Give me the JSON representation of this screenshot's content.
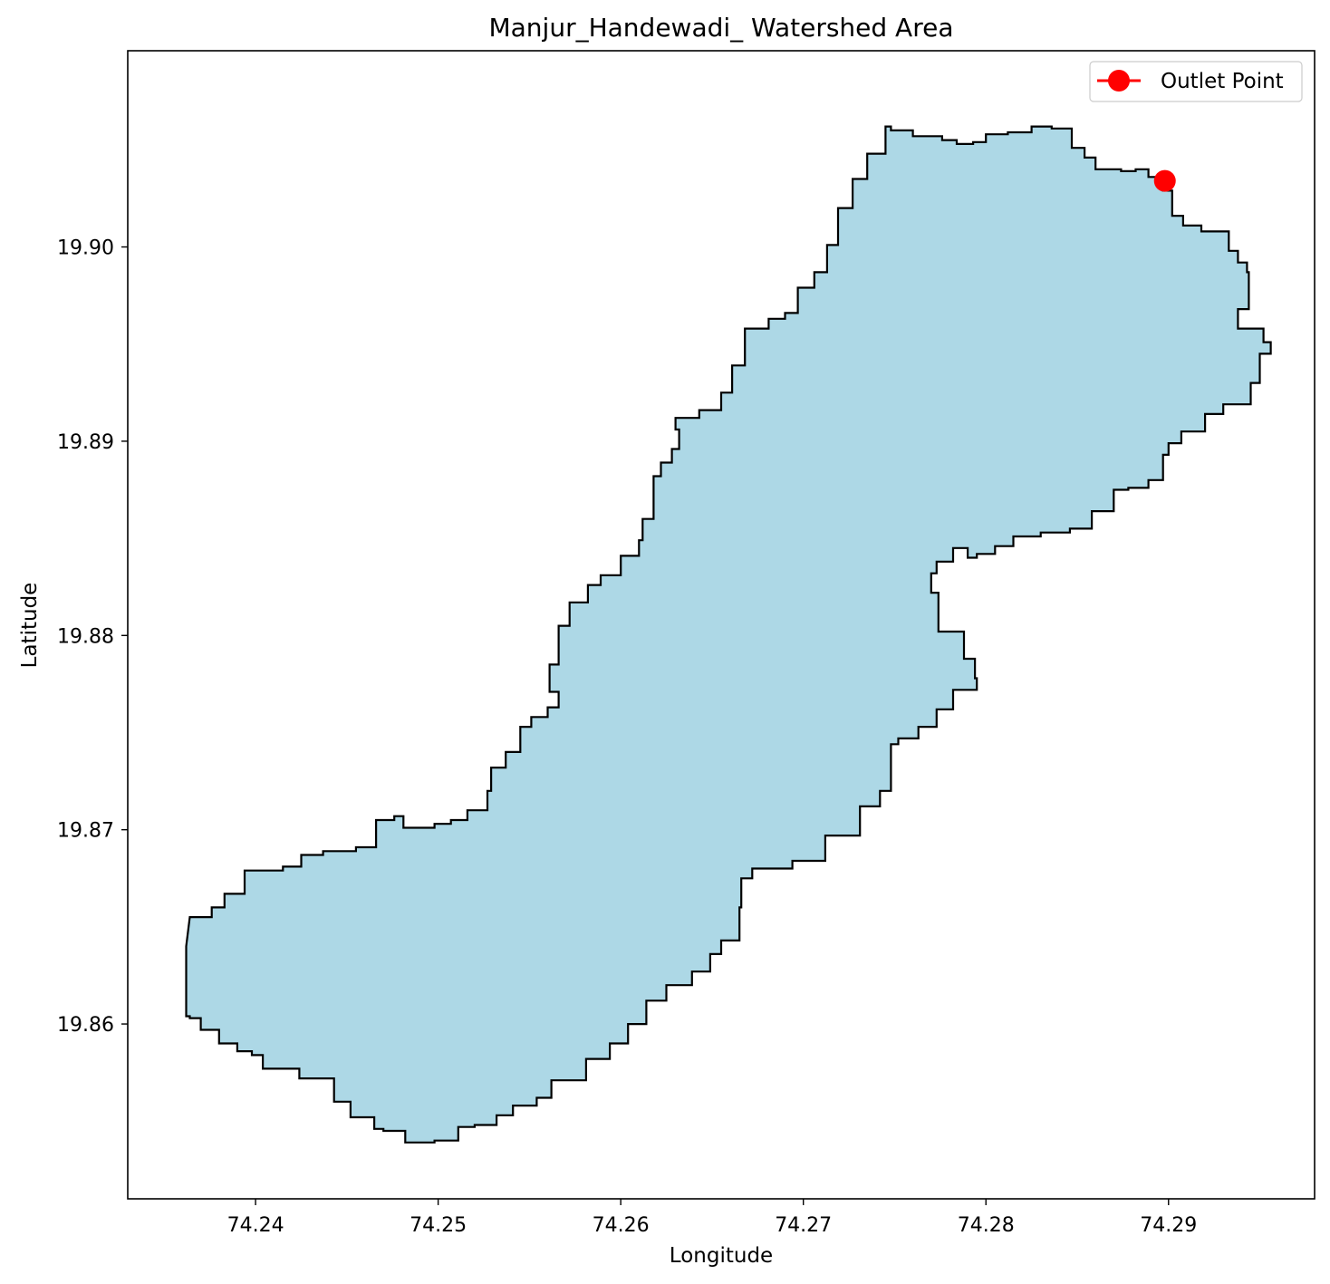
{
  "chart_data": {
    "type": "map",
    "title": "Manjur_Handewadi_ Watershed Area",
    "xlabel": "Longitude",
    "ylabel": "Latitude",
    "xlim": [
      74.233,
      74.298
    ],
    "ylim": [
      19.851,
      19.9101
    ],
    "xticks": [
      74.24,
      74.25,
      74.26,
      74.27,
      74.28,
      74.29
    ],
    "xtick_labels": [
      "74.24",
      "74.25",
      "74.26",
      "74.27",
      "74.28",
      "74.29"
    ],
    "yticks": [
      19.86,
      19.87,
      19.88,
      19.89,
      19.9
    ],
    "ytick_labels": [
      "19.86",
      "19.87",
      "19.88",
      "19.89",
      "19.90"
    ],
    "grid": false,
    "legend_position": "top-right",
    "watershed": {
      "fill_color": "#add8e6",
      "edge_color": "#000000",
      "boundary": [
        [
          74.2364,
          19.8655
        ],
        [
          74.2372,
          19.8655
        ],
        [
          74.2376,
          19.866
        ],
        [
          74.2383,
          19.8667
        ],
        [
          74.2394,
          19.8679
        ],
        [
          74.24,
          19.8679
        ],
        [
          74.2415,
          19.8681
        ],
        [
          74.2425,
          19.8687
        ],
        [
          74.2437,
          19.8689
        ],
        [
          74.2455,
          19.8691
        ],
        [
          74.2466,
          19.8705
        ],
        [
          74.2476,
          19.8707
        ],
        [
          74.2481,
          19.8701
        ],
        [
          74.249,
          19.8701
        ],
        [
          74.2498,
          19.8703
        ],
        [
          74.2507,
          19.8705
        ],
        [
          74.2516,
          19.871
        ],
        [
          74.2527,
          19.872
        ],
        [
          74.2529,
          19.8732
        ],
        [
          74.2537,
          19.874
        ],
        [
          74.2545,
          19.8753
        ],
        [
          74.2551,
          19.8758
        ],
        [
          74.256,
          19.8763
        ],
        [
          74.2566,
          19.8771
        ],
        [
          74.2561,
          19.8785
        ],
        [
          74.2566,
          19.8805
        ],
        [
          74.2572,
          19.8817
        ],
        [
          74.2582,
          19.8826
        ],
        [
          74.2589,
          19.8831
        ],
        [
          74.26,
          19.8841
        ],
        [
          74.261,
          19.8849
        ],
        [
          74.2612,
          19.886
        ],
        [
          74.2618,
          19.8882
        ],
        [
          74.2622,
          19.8889
        ],
        [
          74.2628,
          19.8896
        ],
        [
          74.2632,
          19.8906
        ],
        [
          74.263,
          19.8912
        ],
        [
          74.2643,
          19.8916
        ],
        [
          74.2655,
          19.8925
        ],
        [
          74.2661,
          19.8939
        ],
        [
          74.2668,
          19.8958
        ],
        [
          74.2681,
          19.8963
        ],
        [
          74.269,
          19.8966
        ],
        [
          74.2697,
          19.8979
        ],
        [
          74.2706,
          19.8987
        ],
        [
          74.2713,
          19.9001
        ],
        [
          74.2719,
          19.902
        ],
        [
          74.2727,
          19.9035
        ],
        [
          74.2735,
          19.9048
        ],
        [
          74.2745,
          19.9062
        ],
        [
          74.2748,
          19.906
        ],
        [
          74.276,
          19.9057
        ],
        [
          74.2768,
          19.9057
        ],
        [
          74.2776,
          19.9055
        ],
        [
          74.2784,
          19.9053
        ],
        [
          74.2793,
          19.9054
        ],
        [
          74.28,
          19.9058
        ],
        [
          74.2812,
          19.9059
        ],
        [
          74.2825,
          19.9062
        ],
        [
          74.2836,
          19.9061
        ],
        [
          74.2847,
          19.9051
        ],
        [
          74.2854,
          19.9046
        ],
        [
          74.286,
          19.904
        ],
        [
          74.2874,
          19.9039
        ],
        [
          74.2882,
          19.904
        ],
        [
          74.2889,
          19.9036
        ],
        [
          74.2897,
          19.9029
        ],
        [
          74.2902,
          19.9016
        ],
        [
          74.2908,
          19.9011
        ],
        [
          74.2918,
          19.9008
        ],
        [
          74.2932,
          19.9008
        ],
        [
          74.2933,
          19.8998
        ],
        [
          74.2938,
          19.8992
        ],
        [
          74.2943,
          19.8987
        ],
        [
          74.2944,
          19.8968
        ],
        [
          74.2938,
          19.8958
        ],
        [
          74.2952,
          19.8951
        ],
        [
          74.2956,
          19.895
        ],
        [
          74.2956,
          19.8945
        ],
        [
          74.295,
          19.893
        ],
        [
          74.2945,
          19.8919
        ],
        [
          74.293,
          19.8914
        ],
        [
          74.292,
          19.8905
        ],
        [
          74.2907,
          19.8899
        ],
        [
          74.29,
          19.8893
        ],
        [
          74.2897,
          19.888
        ],
        [
          74.2889,
          19.8876
        ],
        [
          74.2878,
          19.8875
        ],
        [
          74.287,
          19.8864
        ],
        [
          74.2858,
          19.8855
        ],
        [
          74.2846,
          19.8853
        ],
        [
          74.283,
          19.8851
        ],
        [
          74.2815,
          19.8846
        ],
        [
          74.2805,
          19.8842
        ],
        [
          74.2795,
          19.884
        ],
        [
          74.279,
          19.8845
        ],
        [
          74.2782,
          19.8838
        ],
        [
          74.2773,
          19.8832
        ],
        [
          74.277,
          19.8822
        ],
        [
          74.2774,
          19.8802
        ],
        [
          74.2788,
          19.8788
        ],
        [
          74.2794,
          19.8778
        ],
        [
          74.2795,
          19.8772
        ],
        [
          74.2782,
          19.8762
        ],
        [
          74.2773,
          19.8753
        ],
        [
          74.2763,
          19.8747
        ],
        [
          74.2752,
          19.8744
        ],
        [
          74.2748,
          19.872
        ],
        [
          74.2742,
          19.8712
        ],
        [
          74.2731,
          19.8697
        ],
        [
          74.2712,
          19.8684
        ],
        [
          74.2694,
          19.868
        ],
        [
          74.2672,
          19.8675
        ],
        [
          74.2666,
          19.866
        ],
        [
          74.2665,
          19.8643
        ],
        [
          74.2655,
          19.8636
        ],
        [
          74.2649,
          19.8627
        ],
        [
          74.2639,
          19.862
        ],
        [
          74.2625,
          19.8612
        ],
        [
          74.2614,
          19.86
        ],
        [
          74.2604,
          19.859
        ],
        [
          74.2594,
          19.8582
        ],
        [
          74.2581,
          19.8571
        ],
        [
          74.2562,
          19.8562
        ],
        [
          74.2554,
          19.8558
        ],
        [
          74.2541,
          19.8553
        ],
        [
          74.2532,
          19.8548
        ],
        [
          74.252,
          19.8547
        ],
        [
          74.2511,
          19.854
        ],
        [
          74.2498,
          19.8539
        ],
        [
          74.2482,
          19.8545
        ],
        [
          74.247,
          19.8546
        ],
        [
          74.2465,
          19.8552
        ],
        [
          74.2452,
          19.856
        ],
        [
          74.2443,
          19.8572
        ],
        [
          74.2424,
          19.8577
        ],
        [
          74.2404,
          19.8584
        ],
        [
          74.2398,
          19.8586
        ],
        [
          74.239,
          19.859
        ],
        [
          74.238,
          19.8597
        ],
        [
          74.237,
          19.8603
        ],
        [
          74.2364,
          19.8604
        ],
        [
          74.2362,
          19.862
        ],
        [
          74.2362,
          19.864
        ]
      ]
    },
    "series": [
      {
        "name": "Outlet Point",
        "type": "point",
        "color": "#ff0000",
        "x": 74.2898,
        "y": 19.9034
      }
    ]
  }
}
